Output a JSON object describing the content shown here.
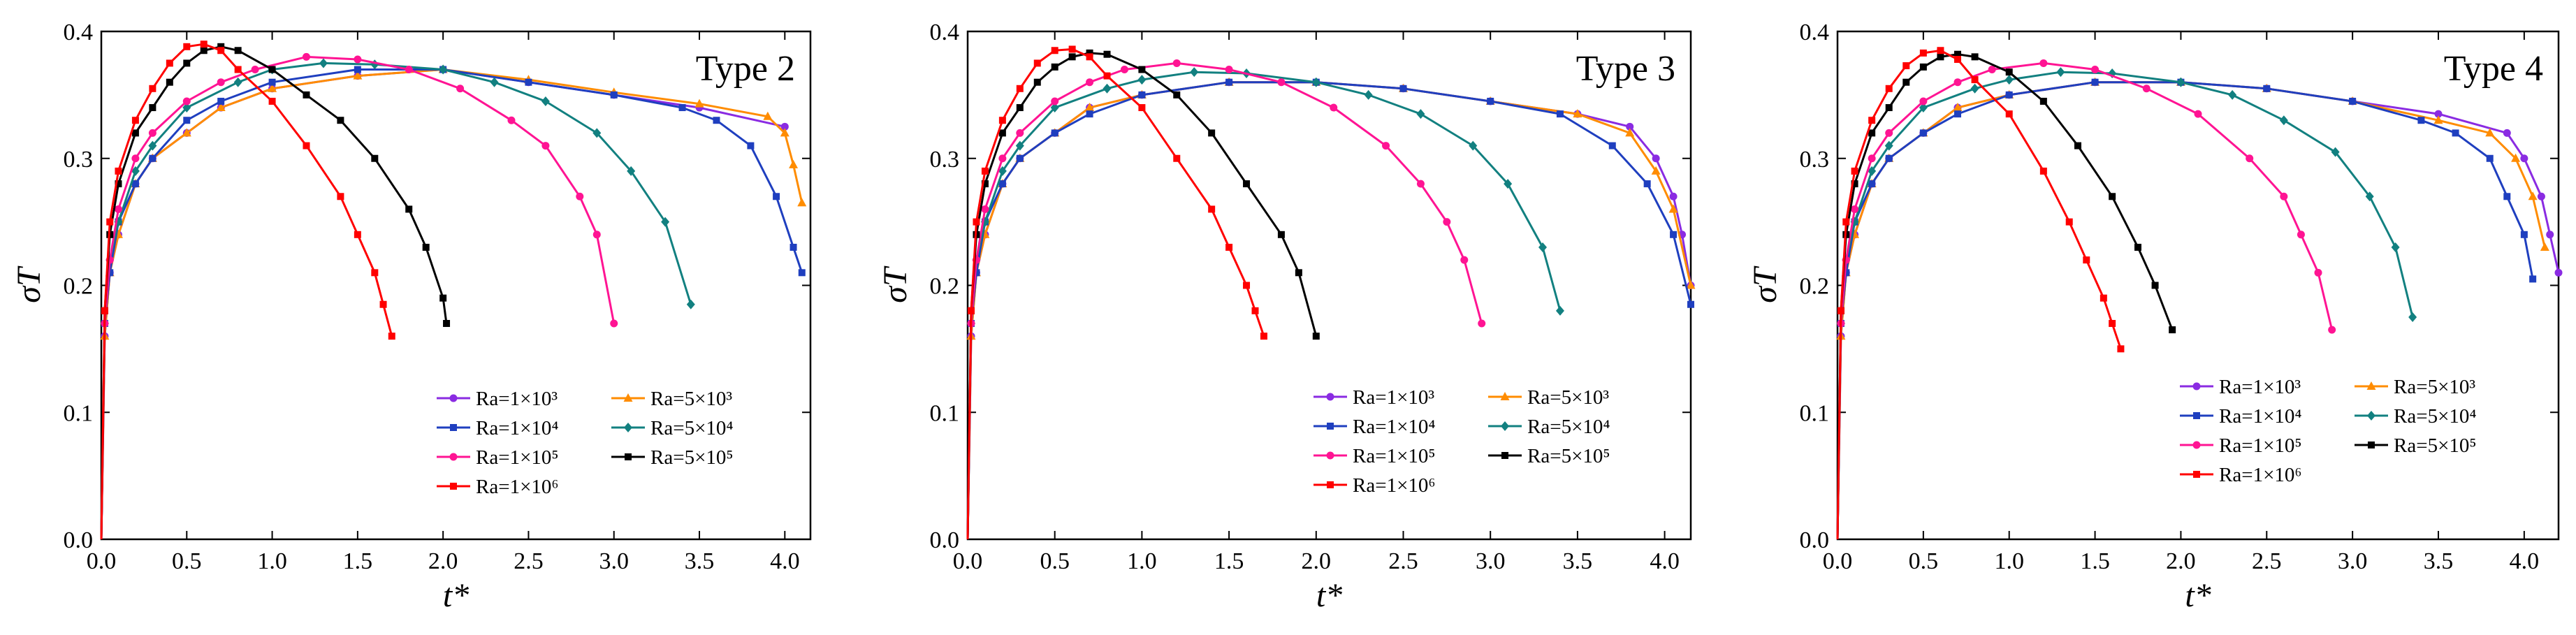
{
  "chart_data": [
    {
      "type": "line",
      "title": "Type 2",
      "xlabel": "t*",
      "ylabel": "σT",
      "xlim": [
        0,
        4.15
      ],
      "ylim": [
        0,
        0.4
      ],
      "xticks": [
        "0.0",
        "0.5",
        "1.0",
        "1.5",
        "2.0",
        "2.5",
        "3.0",
        "3.5",
        "4.0"
      ],
      "yticks": [
        "0.0",
        "0.1",
        "0.2",
        "0.3",
        "0.4"
      ],
      "legend_position": "bottom-right",
      "series": [
        {
          "name": "Ra=1×10³",
          "marker": "circle",
          "color": "#8a2be2",
          "x": [
            0,
            0.02,
            0.05,
            0.1,
            0.2,
            0.3,
            0.5,
            0.7,
            1.0,
            1.5,
            2.0,
            2.5,
            3.0,
            3.5,
            4.0
          ],
          "y": [
            0,
            0.16,
            0.21,
            0.24,
            0.28,
            0.3,
            0.32,
            0.34,
            0.355,
            0.365,
            0.37,
            0.36,
            0.35,
            0.34,
            0.325
          ]
        },
        {
          "name": "Ra=5×10³",
          "marker": "triangle",
          "color": "#ff8c00",
          "x": [
            0,
            0.02,
            0.05,
            0.1,
            0.2,
            0.3,
            0.5,
            0.7,
            1.0,
            1.5,
            2.0,
            2.5,
            3.0,
            3.5,
            3.9,
            4.0,
            4.05,
            4.1
          ],
          "y": [
            0,
            0.16,
            0.21,
            0.24,
            0.28,
            0.3,
            0.32,
            0.34,
            0.355,
            0.365,
            0.37,
            0.362,
            0.352,
            0.343,
            0.333,
            0.32,
            0.295,
            0.265
          ]
        },
        {
          "name": "Ra=1×10⁴",
          "marker": "square",
          "color": "#1f3fbf",
          "x": [
            0,
            0.02,
            0.05,
            0.1,
            0.2,
            0.3,
            0.5,
            0.7,
            1.0,
            1.5,
            2.0,
            2.5,
            3.0,
            3.4,
            3.6,
            3.8,
            3.95,
            4.05,
            4.1
          ],
          "y": [
            0,
            0.17,
            0.21,
            0.25,
            0.28,
            0.3,
            0.33,
            0.345,
            0.36,
            0.37,
            0.37,
            0.36,
            0.35,
            0.34,
            0.33,
            0.31,
            0.27,
            0.23,
            0.21
          ]
        },
        {
          "name": "Ra=5×10⁴",
          "marker": "diamond",
          "color": "#128080",
          "x": [
            0,
            0.02,
            0.05,
            0.1,
            0.2,
            0.3,
            0.5,
            0.8,
            1.0,
            1.3,
            1.6,
            2.0,
            2.3,
            2.6,
            2.9,
            3.1,
            3.3,
            3.45
          ],
          "y": [
            0,
            0.17,
            0.22,
            0.25,
            0.29,
            0.31,
            0.34,
            0.36,
            0.37,
            0.375,
            0.374,
            0.37,
            0.36,
            0.345,
            0.32,
            0.29,
            0.25,
            0.185
          ]
        },
        {
          "name": "Ra=1×10⁵",
          "marker": "circle",
          "color": "#ff1493",
          "x": [
            0,
            0.02,
            0.05,
            0.1,
            0.2,
            0.3,
            0.5,
            0.7,
            0.9,
            1.2,
            1.5,
            1.8,
            2.1,
            2.4,
            2.6,
            2.8,
            2.9,
            3.0
          ],
          "y": [
            0,
            0.17,
            0.22,
            0.26,
            0.3,
            0.32,
            0.345,
            0.36,
            0.37,
            0.38,
            0.378,
            0.37,
            0.355,
            0.33,
            0.31,
            0.27,
            0.24,
            0.17
          ]
        },
        {
          "name": "Ra=5×10⁵",
          "marker": "square",
          "color": "#000000",
          "x": [
            0,
            0.02,
            0.05,
            0.1,
            0.2,
            0.3,
            0.4,
            0.5,
            0.6,
            0.7,
            0.8,
            1.0,
            1.2,
            1.4,
            1.6,
            1.8,
            1.9,
            2.0,
            2.02
          ],
          "y": [
            0,
            0.18,
            0.24,
            0.28,
            0.32,
            0.34,
            0.36,
            0.375,
            0.385,
            0.388,
            0.385,
            0.37,
            0.35,
            0.33,
            0.3,
            0.26,
            0.23,
            0.19,
            0.17
          ]
        },
        {
          "name": "Ra=1×10⁶",
          "marker": "square",
          "color": "#ff0000",
          "x": [
            0,
            0.02,
            0.05,
            0.1,
            0.2,
            0.3,
            0.4,
            0.5,
            0.6,
            0.7,
            0.8,
            1.0,
            1.2,
            1.4,
            1.5,
            1.6,
            1.65,
            1.7
          ],
          "y": [
            0,
            0.18,
            0.25,
            0.29,
            0.33,
            0.355,
            0.375,
            0.388,
            0.39,
            0.385,
            0.37,
            0.345,
            0.31,
            0.27,
            0.24,
            0.21,
            0.185,
            0.16
          ]
        }
      ]
    },
    {
      "type": "line",
      "title": "Type 3",
      "xlabel": "t*",
      "ylabel": "σT",
      "xlim": [
        0,
        4.15
      ],
      "ylim": [
        0,
        0.4
      ],
      "xticks": [
        "0.0",
        "0.5",
        "1.0",
        "1.5",
        "2.0",
        "2.5",
        "3.0",
        "3.5",
        "4.0"
      ],
      "yticks": [
        "0.0",
        "0.1",
        "0.2",
        "0.3",
        "0.4"
      ],
      "legend_position": "bottom-right",
      "series": [
        {
          "name": "Ra=1×10³",
          "marker": "circle",
          "color": "#8a2be2",
          "x": [
            0,
            0.02,
            0.05,
            0.1,
            0.2,
            0.3,
            0.5,
            0.7,
            1.0,
            1.5,
            2.0,
            2.5,
            3.0,
            3.5,
            3.8,
            3.95,
            4.05,
            4.1,
            4.15
          ],
          "y": [
            0,
            0.16,
            0.21,
            0.24,
            0.28,
            0.3,
            0.32,
            0.34,
            0.35,
            0.36,
            0.36,
            0.355,
            0.345,
            0.335,
            0.325,
            0.3,
            0.27,
            0.24,
            0.2
          ]
        },
        {
          "name": "Ra=5×10³",
          "marker": "triangle",
          "color": "#ff8c00",
          "x": [
            0,
            0.02,
            0.05,
            0.1,
            0.2,
            0.3,
            0.5,
            0.7,
            1.0,
            1.5,
            2.0,
            2.5,
            3.0,
            3.5,
            3.8,
            3.95,
            4.05,
            4.15
          ],
          "y": [
            0,
            0.16,
            0.21,
            0.24,
            0.28,
            0.3,
            0.32,
            0.34,
            0.35,
            0.36,
            0.36,
            0.355,
            0.345,
            0.335,
            0.32,
            0.29,
            0.26,
            0.2
          ]
        },
        {
          "name": "Ra=1×10⁴",
          "marker": "square",
          "color": "#1f3fbf",
          "x": [
            0,
            0.02,
            0.05,
            0.1,
            0.2,
            0.3,
            0.5,
            0.7,
            1.0,
            1.5,
            2.0,
            2.5,
            3.0,
            3.4,
            3.7,
            3.9,
            4.05,
            4.15
          ],
          "y": [
            0,
            0.17,
            0.21,
            0.25,
            0.28,
            0.3,
            0.32,
            0.335,
            0.35,
            0.36,
            0.36,
            0.355,
            0.345,
            0.335,
            0.31,
            0.28,
            0.24,
            0.185
          ]
        },
        {
          "name": "Ra=5×10⁴",
          "marker": "diamond",
          "color": "#128080",
          "x": [
            0,
            0.02,
            0.05,
            0.1,
            0.2,
            0.3,
            0.5,
            0.8,
            1.0,
            1.3,
            1.6,
            2.0,
            2.3,
            2.6,
            2.9,
            3.1,
            3.3,
            3.4
          ],
          "y": [
            0,
            0.17,
            0.22,
            0.25,
            0.29,
            0.31,
            0.34,
            0.355,
            0.362,
            0.368,
            0.367,
            0.36,
            0.35,
            0.335,
            0.31,
            0.28,
            0.23,
            0.18
          ]
        },
        {
          "name": "Ra=1×10⁵",
          "marker": "circle",
          "color": "#ff1493",
          "x": [
            0,
            0.02,
            0.05,
            0.1,
            0.2,
            0.3,
            0.5,
            0.7,
            0.9,
            1.2,
            1.5,
            1.8,
            2.1,
            2.4,
            2.6,
            2.75,
            2.85,
            2.95
          ],
          "y": [
            0,
            0.17,
            0.22,
            0.26,
            0.3,
            0.32,
            0.345,
            0.36,
            0.37,
            0.375,
            0.37,
            0.36,
            0.34,
            0.31,
            0.28,
            0.25,
            0.22,
            0.17
          ]
        },
        {
          "name": "Ra=5×10⁵",
          "marker": "square",
          "color": "#000000",
          "x": [
            0,
            0.02,
            0.05,
            0.1,
            0.2,
            0.3,
            0.4,
            0.5,
            0.6,
            0.7,
            0.8,
            1.0,
            1.2,
            1.4,
            1.6,
            1.8,
            1.9,
            2.0
          ],
          "y": [
            0,
            0.18,
            0.24,
            0.28,
            0.32,
            0.34,
            0.36,
            0.372,
            0.38,
            0.383,
            0.382,
            0.37,
            0.35,
            0.32,
            0.28,
            0.24,
            0.21,
            0.16
          ]
        },
        {
          "name": "Ra=1×10⁶",
          "marker": "square",
          "color": "#ff0000",
          "x": [
            0,
            0.02,
            0.05,
            0.1,
            0.2,
            0.3,
            0.4,
            0.5,
            0.6,
            0.7,
            0.8,
            1.0,
            1.2,
            1.4,
            1.5,
            1.6,
            1.65,
            1.7
          ],
          "y": [
            0,
            0.18,
            0.25,
            0.29,
            0.33,
            0.355,
            0.375,
            0.385,
            0.386,
            0.38,
            0.365,
            0.34,
            0.3,
            0.26,
            0.23,
            0.2,
            0.18,
            0.16
          ]
        }
      ]
    },
    {
      "type": "line",
      "title": "Type 4",
      "xlabel": "t*",
      "ylabel": "σT",
      "xlim": [
        0,
        4.2
      ],
      "ylim": [
        0,
        0.4
      ],
      "xticks": [
        "0.0",
        "0.5",
        "1.0",
        "1.5",
        "2.0",
        "2.5",
        "3.0",
        "3.5",
        "4.0"
      ],
      "yticks": [
        "0.0",
        "0.1",
        "0.2",
        "0.3",
        "0.4"
      ],
      "legend_position": "bottom-right",
      "series": [
        {
          "name": "Ra=1×10³",
          "marker": "circle",
          "color": "#8a2be2",
          "x": [
            0,
            0.02,
            0.05,
            0.1,
            0.2,
            0.3,
            0.5,
            0.7,
            1.0,
            1.5,
            2.0,
            2.5,
            3.0,
            3.5,
            3.9,
            4.0,
            4.1,
            4.15,
            4.2
          ],
          "y": [
            0,
            0.16,
            0.21,
            0.24,
            0.28,
            0.3,
            0.32,
            0.34,
            0.35,
            0.36,
            0.36,
            0.355,
            0.345,
            0.335,
            0.32,
            0.3,
            0.27,
            0.24,
            0.21
          ]
        },
        {
          "name": "Ra=5×10³",
          "marker": "triangle",
          "color": "#ff8c00",
          "x": [
            0,
            0.02,
            0.05,
            0.1,
            0.2,
            0.3,
            0.5,
            0.7,
            1.0,
            1.5,
            2.0,
            2.5,
            3.0,
            3.5,
            3.8,
            3.95,
            4.05,
            4.12
          ],
          "y": [
            0,
            0.16,
            0.21,
            0.24,
            0.28,
            0.3,
            0.32,
            0.34,
            0.35,
            0.36,
            0.36,
            0.355,
            0.345,
            0.33,
            0.32,
            0.3,
            0.27,
            0.23
          ]
        },
        {
          "name": "Ra=1×10⁴",
          "marker": "square",
          "color": "#1f3fbf",
          "x": [
            0,
            0.02,
            0.05,
            0.1,
            0.2,
            0.3,
            0.5,
            0.7,
            1.0,
            1.5,
            2.0,
            2.5,
            3.0,
            3.4,
            3.6,
            3.8,
            3.9,
            4.0,
            4.05
          ],
          "y": [
            0,
            0.17,
            0.21,
            0.25,
            0.28,
            0.3,
            0.32,
            0.335,
            0.35,
            0.36,
            0.36,
            0.355,
            0.345,
            0.33,
            0.32,
            0.3,
            0.27,
            0.24,
            0.205
          ]
        },
        {
          "name": "Ra=5×10⁴",
          "marker": "diamond",
          "color": "#128080",
          "x": [
            0,
            0.02,
            0.05,
            0.1,
            0.2,
            0.3,
            0.5,
            0.8,
            1.0,
            1.3,
            1.6,
            2.0,
            2.3,
            2.6,
            2.9,
            3.1,
            3.25,
            3.35
          ],
          "y": [
            0,
            0.17,
            0.22,
            0.25,
            0.29,
            0.31,
            0.34,
            0.355,
            0.362,
            0.368,
            0.367,
            0.36,
            0.35,
            0.33,
            0.305,
            0.27,
            0.23,
            0.175
          ]
        },
        {
          "name": "Ra=1×10⁵",
          "marker": "circle",
          "color": "#ff1493",
          "x": [
            0,
            0.02,
            0.05,
            0.1,
            0.2,
            0.3,
            0.5,
            0.7,
            0.9,
            1.2,
            1.5,
            1.8,
            2.1,
            2.4,
            2.6,
            2.7,
            2.8,
            2.88
          ],
          "y": [
            0,
            0.17,
            0.22,
            0.26,
            0.3,
            0.32,
            0.345,
            0.36,
            0.37,
            0.375,
            0.37,
            0.355,
            0.335,
            0.3,
            0.27,
            0.24,
            0.21,
            0.165
          ]
        },
        {
          "name": "Ra=5×10⁵",
          "marker": "square",
          "color": "#000000",
          "x": [
            0,
            0.02,
            0.05,
            0.1,
            0.2,
            0.3,
            0.4,
            0.5,
            0.6,
            0.7,
            0.8,
            1.0,
            1.2,
            1.4,
            1.6,
            1.75,
            1.85,
            1.95
          ],
          "y": [
            0,
            0.18,
            0.24,
            0.28,
            0.32,
            0.34,
            0.36,
            0.372,
            0.38,
            0.382,
            0.38,
            0.368,
            0.345,
            0.31,
            0.27,
            0.23,
            0.2,
            0.165
          ]
        },
        {
          "name": "Ra=1×10⁶",
          "marker": "square",
          "color": "#ff0000",
          "x": [
            0,
            0.02,
            0.05,
            0.1,
            0.2,
            0.3,
            0.4,
            0.5,
            0.6,
            0.7,
            0.8,
            1.0,
            1.2,
            1.35,
            1.45,
            1.55,
            1.6,
            1.65
          ],
          "y": [
            0,
            0.18,
            0.25,
            0.29,
            0.33,
            0.355,
            0.373,
            0.383,
            0.385,
            0.378,
            0.362,
            0.335,
            0.29,
            0.25,
            0.22,
            0.19,
            0.17,
            0.15
          ]
        }
      ]
    }
  ]
}
